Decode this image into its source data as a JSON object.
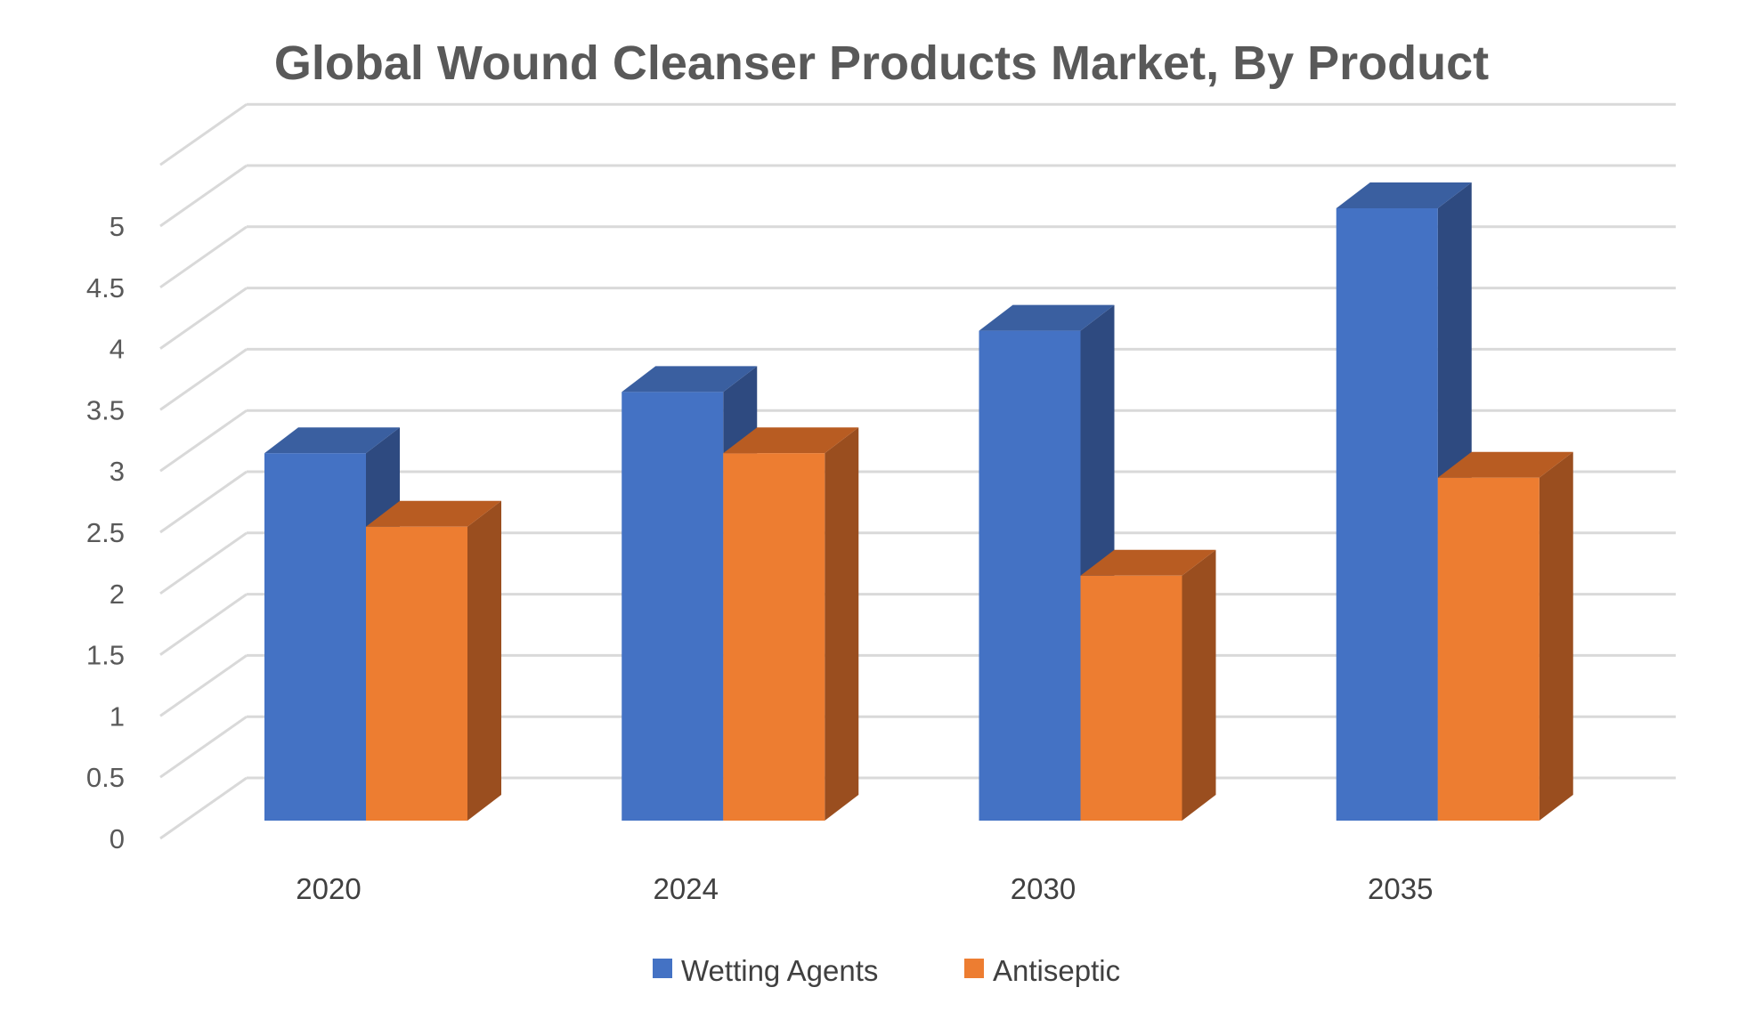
{
  "chart_data": {
    "type": "bar",
    "title": "Global Wound Cleanser Products Market, By Product",
    "xlabel": "",
    "ylabel": "",
    "categories": [
      "2020",
      "2024",
      "2030",
      "2035"
    ],
    "series": [
      {
        "name": "Wetting Agents",
        "values": [
          3.0,
          3.5,
          4.0,
          5.0
        ],
        "color": "#4472C4",
        "side_color": "#2E4A80",
        "top_color": "#3A5FA0"
      },
      {
        "name": "Antiseptic",
        "values": [
          2.4,
          3.0,
          2.0,
          2.8
        ],
        "color": "#ED7D31",
        "side_color": "#9A4E1F",
        "top_color": "#B85C22"
      }
    ],
    "ylim": [
      0,
      5.5
    ],
    "yticks": [
      "0",
      "0.5",
      "1",
      "1.5",
      "2",
      "2.5",
      "3",
      "3.5",
      "4",
      "4.5",
      "5"
    ],
    "grid": true,
    "legend_position": "bottom",
    "style": "3d-clustered-column"
  }
}
